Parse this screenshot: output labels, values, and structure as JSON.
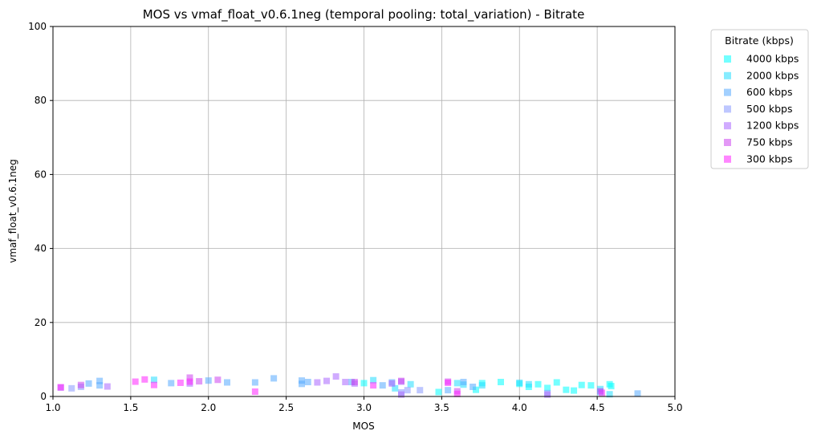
{
  "chart_data": {
    "type": "scatter",
    "title": "MOS vs vmaf_float_v0.6.1neg (temporal pooling: total_variation) - Bitrate",
    "xlabel": "MOS",
    "ylabel": "vmaf_float_v0.6.1neg",
    "xlim": [
      1.0,
      5.0
    ],
    "ylim": [
      0,
      100
    ],
    "xticks": [
      "1.0",
      "1.5",
      "2.0",
      "2.5",
      "3.0",
      "3.5",
      "4.0",
      "4.5",
      "5.0"
    ],
    "yticks": [
      "0",
      "20",
      "40",
      "60",
      "80",
      "100"
    ],
    "grid": true,
    "legend_title": "Bitrate (kbps)",
    "legend_position": "outside-top-right",
    "series": [
      {
        "name": "4000 kbps",
        "color": "#00ffff",
        "points": [
          [
            3.0,
            3.6
          ],
          [
            3.48,
            1.2
          ],
          [
            3.72,
            1.8
          ],
          [
            3.76,
            3.6
          ],
          [
            3.88,
            3.9
          ],
          [
            4.0,
            3.4
          ],
          [
            4.06,
            2.6
          ],
          [
            4.12,
            3.3
          ],
          [
            4.18,
            2.3
          ],
          [
            4.24,
            3.8
          ],
          [
            4.3,
            1.8
          ],
          [
            4.35,
            1.6
          ],
          [
            4.4,
            3.1
          ],
          [
            4.46,
            3.0
          ],
          [
            4.52,
            1.2
          ],
          [
            4.58,
            3.3
          ],
          [
            4.59,
            2.8
          ]
        ]
      },
      {
        "name": "2000 kbps",
        "color": "#22ddff",
        "points": [
          [
            1.65,
            4.5
          ],
          [
            3.06,
            4.4
          ],
          [
            3.2,
            2.2
          ],
          [
            3.3,
            3.3
          ],
          [
            3.6,
            3.6
          ],
          [
            3.64,
            3.2
          ],
          [
            3.76,
            3.0
          ],
          [
            4.0,
            3.7
          ],
          [
            4.06,
            3.3
          ],
          [
            4.52,
            2.0
          ],
          [
            4.58,
            0.6
          ]
        ]
      },
      {
        "name": "600 kbps",
        "color": "#55aaff",
        "points": [
          [
            1.23,
            3.5
          ],
          [
            1.3,
            4.2
          ],
          [
            1.3,
            3.0
          ],
          [
            1.76,
            3.6
          ],
          [
            2.0,
            4.3
          ],
          [
            2.12,
            3.8
          ],
          [
            2.3,
            3.8
          ],
          [
            2.42,
            4.9
          ],
          [
            2.6,
            4.3
          ],
          [
            2.6,
            3.4
          ],
          [
            2.64,
            3.9
          ],
          [
            2.92,
            3.9
          ],
          [
            3.12,
            3.0
          ],
          [
            3.18,
            3.8
          ],
          [
            3.54,
            1.7
          ],
          [
            3.64,
            3.9
          ],
          [
            3.7,
            2.6
          ],
          [
            4.76,
            0.8
          ]
        ]
      },
      {
        "name": "500 kbps",
        "color": "#8899ff",
        "points": [
          [
            1.12,
            2.2
          ],
          [
            1.18,
            2.6
          ],
          [
            3.28,
            1.7
          ],
          [
            3.36,
            1.7
          ],
          [
            3.24,
            1.1
          ],
          [
            4.18,
            0.9
          ]
        ]
      },
      {
        "name": "1200 kbps",
        "color": "#aa66ff",
        "points": [
          [
            1.05,
            2.4
          ],
          [
            1.35,
            2.7
          ],
          [
            1.88,
            3.5
          ],
          [
            2.7,
            3.8
          ],
          [
            2.76,
            4.2
          ],
          [
            2.82,
            5.4
          ],
          [
            2.88,
            3.9
          ],
          [
            2.94,
            3.5
          ],
          [
            3.18,
            3.5
          ],
          [
            3.24,
            4.0
          ],
          [
            3.24,
            0.5
          ],
          [
            4.18,
            0.5
          ]
        ]
      },
      {
        "name": "750 kbps",
        "color": "#cc44ee",
        "points": [
          [
            1.18,
            3.1
          ],
          [
            1.88,
            5.1
          ],
          [
            1.94,
            4.1
          ],
          [
            2.06,
            4.5
          ],
          [
            2.94,
            3.9
          ],
          [
            3.24,
            4.2
          ],
          [
            3.54,
            4.0
          ],
          [
            3.6,
            1.4
          ],
          [
            4.52,
            1.4
          ]
        ]
      },
      {
        "name": "300 kbps",
        "color": "#ff22ff",
        "points": [
          [
            1.05,
            2.5
          ],
          [
            1.53,
            4.0
          ],
          [
            1.59,
            4.6
          ],
          [
            1.65,
            3.1
          ],
          [
            1.82,
            3.7
          ],
          [
            1.88,
            4.0
          ],
          [
            2.3,
            1.3
          ],
          [
            3.06,
            3.0
          ],
          [
            3.54,
            3.7
          ],
          [
            3.6,
            0.7
          ],
          [
            4.53,
            1.0
          ]
        ]
      }
    ]
  }
}
